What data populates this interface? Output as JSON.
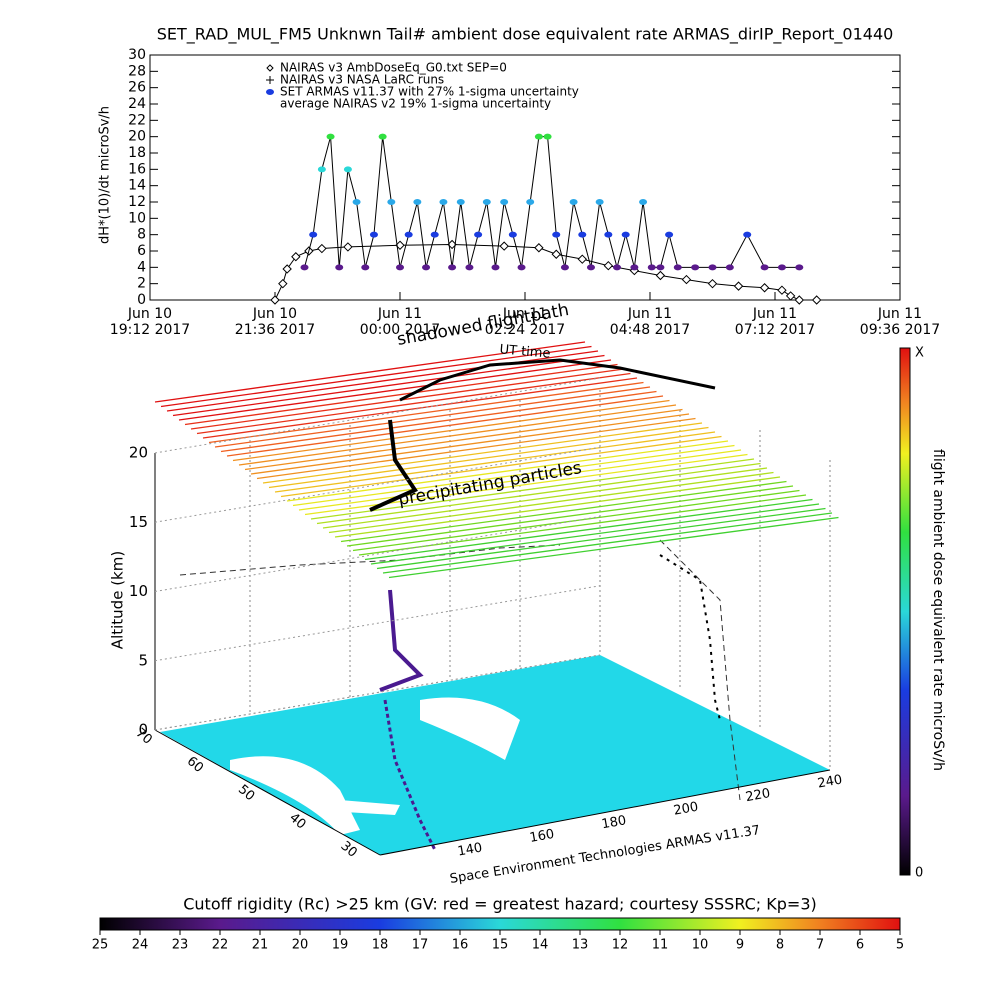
{
  "chart_data": [
    {
      "type": "line",
      "title": "SET_RAD_MUL_FM5 Unknwn Tail#  ambient dose equivalent rate ARMAS_dirIP_Report_01440",
      "ylabel": "dH*(10)/dt microSv/h",
      "xlim": [
        "2017-06-10T19:12",
        "2017-06-11T09:36"
      ],
      "xticks": [
        {
          "value": "2017-06-10T19:12",
          "label": "Jun 10\n19:12 2017"
        },
        {
          "value": "2017-06-10T21:36",
          "label": "Jun 10\n21:36 2017"
        },
        {
          "value": "2017-06-11T00:00",
          "label": "Jun 11\n00:00 2017"
        },
        {
          "value": "2017-06-11T02:24",
          "label": "Jun 11\n02:24 2017"
        },
        {
          "value": "2017-06-11T04:48",
          "label": "Jun 11\n04:48 2017"
        },
        {
          "value": "2017-06-11T07:12",
          "label": "Jun 11\n07:12 2017"
        },
        {
          "value": "2017-06-11T09:36",
          "label": "Jun 11\n09:36 2017"
        }
      ],
      "ylim": [
        0,
        30
      ],
      "yticks": [
        0,
        2,
        4,
        6,
        8,
        10,
        12,
        14,
        16,
        18,
        20,
        22,
        24,
        26,
        28,
        30
      ],
      "annotations": [
        "NAIRAS v3 NASA LaRC runs",
        "average NAIRAS v2 19% 1-sigma uncertainty"
      ],
      "series": [
        {
          "name": "NAIRAS v3 AmbDoseEq_G0.txt SEP=0",
          "color": "#000000",
          "marker": "diamond",
          "x": [
            "2017-06-10T21:36",
            "2017-06-10T21:45",
            "2017-06-10T21:50",
            "2017-06-10T22:00",
            "2017-06-10T22:15",
            "2017-06-10T22:30",
            "2017-06-10T23:00",
            "2017-06-11T00:00",
            "2017-06-11T01:00",
            "2017-06-11T02:00",
            "2017-06-11T02:40",
            "2017-06-11T03:00",
            "2017-06-11T03:30",
            "2017-06-11T04:00",
            "2017-06-11T04:30",
            "2017-06-11T05:00",
            "2017-06-11T05:30",
            "2017-06-11T06:00",
            "2017-06-11T06:30",
            "2017-06-11T07:00",
            "2017-06-11T07:20",
            "2017-06-11T07:30",
            "2017-06-11T07:40",
            "2017-06-11T08:00"
          ],
          "values": [
            0,
            2,
            3.8,
            5.3,
            6,
            6.3,
            6.5,
            6.7,
            6.8,
            6.6,
            6.4,
            5.6,
            5,
            4.2,
            3.6,
            3,
            2.5,
            2,
            1.7,
            1.5,
            1.2,
            0.5,
            0,
            0
          ]
        },
        {
          "name": "SET ARMAS v11.37 with 27% 1-sigma uncertainty",
          "color": "#1a3ce0",
          "marker": "dot",
          "x": [
            "2017-06-10T22:10",
            "2017-06-10T22:20",
            "2017-06-10T22:30",
            "2017-06-10T22:40",
            "2017-06-10T22:50",
            "2017-06-10T23:00",
            "2017-06-10T23:10",
            "2017-06-10T23:20",
            "2017-06-10T23:30",
            "2017-06-10T23:40",
            "2017-06-10T23:50",
            "2017-06-11T00:00",
            "2017-06-11T00:10",
            "2017-06-11T00:20",
            "2017-06-11T00:30",
            "2017-06-11T00:40",
            "2017-06-11T00:50",
            "2017-06-11T01:00",
            "2017-06-11T01:10",
            "2017-06-11T01:20",
            "2017-06-11T01:30",
            "2017-06-11T01:40",
            "2017-06-11T01:50",
            "2017-06-11T02:00",
            "2017-06-11T02:10",
            "2017-06-11T02:20",
            "2017-06-11T02:30",
            "2017-06-11T02:40",
            "2017-06-11T02:50",
            "2017-06-11T03:00",
            "2017-06-11T03:10",
            "2017-06-11T03:20",
            "2017-06-11T03:30",
            "2017-06-11T03:40",
            "2017-06-11T03:50",
            "2017-06-11T04:00",
            "2017-06-11T04:10",
            "2017-06-11T04:20",
            "2017-06-11T04:30",
            "2017-06-11T04:40",
            "2017-06-11T04:50",
            "2017-06-11T05:00",
            "2017-06-11T05:10",
            "2017-06-11T05:20",
            "2017-06-11T05:40",
            "2017-06-11T06:00",
            "2017-06-11T06:20",
            "2017-06-11T06:40",
            "2017-06-11T07:00",
            "2017-06-11T07:20",
            "2017-06-11T07:40"
          ],
          "values": [
            4,
            8,
            16,
            20,
            4,
            16,
            12,
            4,
            8,
            20,
            12,
            4,
            8,
            12,
            4,
            8,
            12,
            4,
            12,
            4,
            8,
            12,
            4,
            12,
            8,
            4,
            12,
            20,
            20,
            8,
            4,
            12,
            8,
            4,
            12,
            8,
            4,
            8,
            4,
            12,
            4,
            4,
            8,
            4,
            4,
            4,
            4,
            8,
            4,
            4,
            4
          ],
          "colors": [
            "#5a1a8c",
            "#1a3ce0",
            "#2ad8d8",
            "#30e040",
            "#5a1a8c",
            "#2ad8d8",
            "#2aa8e8",
            "#5a1a8c",
            "#1a3ce0",
            "#30e040",
            "#2aa8e8",
            "#5a1a8c",
            "#1a3ce0",
            "#2aa8e8",
            "#5a1a8c",
            "#1a3ce0",
            "#2aa8e8",
            "#5a1a8c",
            "#2aa8e8",
            "#5a1a8c",
            "#1a3ce0",
            "#2aa8e8",
            "#5a1a8c",
            "#2aa8e8",
            "#1a3ce0",
            "#5a1a8c",
            "#2aa8e8",
            "#30e040",
            "#30e040",
            "#1a3ce0",
            "#5a1a8c",
            "#2aa8e8",
            "#1a3ce0",
            "#5a1a8c",
            "#2aa8e8",
            "#1a3ce0",
            "#5a1a8c",
            "#1a3ce0",
            "#5a1a8c",
            "#2aa8e8",
            "#5a1a8c",
            "#5a1a8c",
            "#1a3ce0",
            "#5a1a8c",
            "#5a1a8c",
            "#5a1a8c",
            "#5a1a8c",
            "#1a3ce0",
            "#5a1a8c",
            "#5a1a8c",
            "#5a1a8c"
          ]
        }
      ]
    },
    {
      "type": "surface3d",
      "title": "shadowed flightpath",
      "subtitle": "UT time",
      "annotation": "precipitating particles",
      "zlabel": "Altitude (km)",
      "zlim": [
        0,
        20
      ],
      "zticks": [
        0,
        5,
        10,
        15,
        20
      ],
      "xticks": [
        140,
        160,
        180,
        200,
        220,
        240
      ],
      "yticks": [
        30,
        40,
        50,
        60,
        70
      ],
      "credit": "Space Environment Technologies ARMAS v11.37"
    },
    {
      "type": "colorbar",
      "label": "flight ambient dose equivalent rate microSv/h",
      "top": "X",
      "bottom": "0"
    },
    {
      "type": "colorbar",
      "title": "Cutoff rigidity (Rc) >25 km (GV: red = greatest hazard; courtesy SSSRC; Kp=3)",
      "ticks": [
        25,
        24,
        23,
        22,
        21,
        20,
        19,
        18,
        17,
        16,
        15,
        14,
        13,
        12,
        11,
        10,
        9,
        8,
        7,
        6,
        5
      ]
    }
  ]
}
